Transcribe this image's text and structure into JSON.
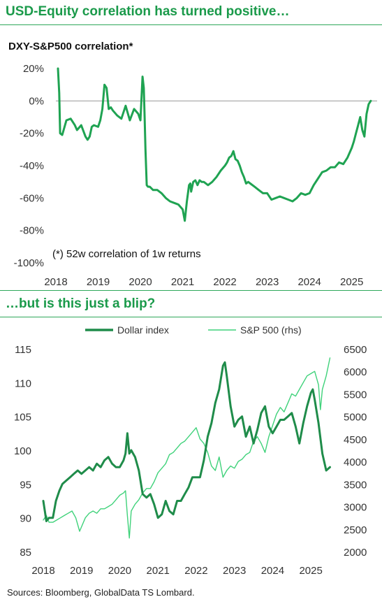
{
  "chart_data": [
    {
      "type": "line",
      "title": "USD-Equity correlation has turned positive…",
      "subtitle": "DXY-S&P500 correlation*",
      "annotation": "(*) 52w correlation of 1w returns",
      "x_tick_labels": [
        "2018",
        "2019",
        "2020",
        "2021",
        "2022",
        "2023",
        "2024",
        "2025"
      ],
      "y_tick_labels": [
        "20%",
        "0%",
        "-20%",
        "-40%",
        "-60%",
        "-80%",
        "-100%"
      ],
      "xlim": [
        2018.0,
        2025.6
      ],
      "ylim": [
        -100,
        20
      ],
      "reference_line": 0,
      "series": [
        {
          "color": "#1fa352",
          "x": [
            2018.05,
            2018.08,
            2018.1,
            2018.15,
            2018.25,
            2018.35,
            2018.45,
            2018.5,
            2018.6,
            2018.7,
            2018.75,
            2018.8,
            2018.85,
            2018.9,
            2019.0,
            2019.05,
            2019.1,
            2019.15,
            2019.2,
            2019.25,
            2019.3,
            2019.35,
            2019.45,
            2019.55,
            2019.65,
            2019.75,
            2019.85,
            2019.95,
            2020.0,
            2020.05,
            2020.08,
            2020.1,
            2020.12,
            2020.15,
            2020.18,
            2020.22,
            2020.3,
            2020.4,
            2020.5,
            2020.6,
            2020.7,
            2020.8,
            2020.9,
            2021.0,
            2021.05,
            2021.1,
            2021.15,
            2021.18,
            2021.2,
            2021.25,
            2021.3,
            2021.35,
            2021.4,
            2021.45,
            2021.5,
            2021.6,
            2021.7,
            2021.8,
            2021.9,
            2022.0,
            2022.05,
            2022.1,
            2022.15,
            2022.2,
            2022.25,
            2022.3,
            2022.35,
            2022.4,
            2022.45,
            2022.5,
            2022.55,
            2022.6,
            2022.7,
            2022.8,
            2022.9,
            2023.0,
            2023.1,
            2023.2,
            2023.3,
            2023.4,
            2023.5,
            2023.6,
            2023.7,
            2023.8,
            2023.9,
            2024.0,
            2024.1,
            2024.2,
            2024.3,
            2024.4,
            2024.5,
            2024.6,
            2024.7,
            2024.8,
            2024.9,
            2025.0,
            2025.05,
            2025.1,
            2025.15,
            2025.2,
            2025.25,
            2025.3,
            2025.35,
            2025.4,
            2025.45
          ],
          "y": [
            20,
            5,
            -20,
            -21,
            -12,
            -11,
            -15,
            -18,
            -15,
            -22,
            -24,
            -22,
            -16,
            -15,
            -16,
            -12,
            -5,
            10,
            8,
            -5,
            -4,
            -6,
            -9,
            -11,
            -3,
            -12,
            -5,
            -8,
            -12,
            15,
            8,
            -10,
            -30,
            -52,
            -53,
            -53,
            -55,
            -55,
            -57,
            -60,
            -62,
            -63,
            -64,
            -67,
            -74,
            -62,
            -52,
            -51,
            -56,
            -50,
            -49,
            -52,
            -49,
            -50,
            -50,
            -52,
            -50,
            -47,
            -43,
            -40,
            -38,
            -35,
            -34,
            -31,
            -36,
            -37,
            -40,
            -44,
            -47,
            -51,
            -50,
            -51,
            -53,
            -55,
            -57,
            -57,
            -61,
            -60,
            -59,
            -60,
            -61,
            -62,
            -60,
            -57,
            -58,
            -57,
            -52,
            -48,
            -44,
            -43,
            -41,
            -41,
            -38,
            -39,
            -35,
            -29,
            -25,
            -20,
            -15,
            -10,
            -18,
            -22,
            -8,
            -2,
            0
          ]
        }
      ]
    },
    {
      "type": "line",
      "title": "…but is this just a blip?",
      "x_tick_labels": [
        "2018",
        "2019",
        "2020",
        "2021",
        "2022",
        "2023",
        "2024",
        "2025"
      ],
      "y_tick_labels": [
        "115",
        "110",
        "105",
        "100",
        "95",
        "90",
        "85"
      ],
      "y2_tick_labels": [
        "6500",
        "6000",
        "5500",
        "5000",
        "4500",
        "4000",
        "3500",
        "3000",
        "2500",
        "2000"
      ],
      "xlim": [
        2018.0,
        2025.6
      ],
      "ylim": [
        85,
        115
      ],
      "y2lim": [
        2000,
        6500
      ],
      "legend_position": "top",
      "series": [
        {
          "name": "Dollar index",
          "axis": "left",
          "color": "#1f8c4a",
          "x": [
            2018.0,
            2018.08,
            2018.15,
            2018.25,
            2018.33,
            2018.42,
            2018.5,
            2018.6,
            2018.7,
            2018.8,
            2018.9,
            2019.0,
            2019.1,
            2019.2,
            2019.3,
            2019.4,
            2019.5,
            2019.6,
            2019.7,
            2019.8,
            2019.9,
            2020.0,
            2020.1,
            2020.15,
            2020.2,
            2020.25,
            2020.3,
            2020.4,
            2020.5,
            2020.6,
            2020.7,
            2020.8,
            2020.9,
            2021.0,
            2021.1,
            2021.2,
            2021.3,
            2021.4,
            2021.5,
            2021.6,
            2021.7,
            2021.8,
            2021.9,
            2022.0,
            2022.1,
            2022.2,
            2022.3,
            2022.4,
            2022.5,
            2022.6,
            2022.7,
            2022.75,
            2022.8,
            2022.9,
            2023.0,
            2023.1,
            2023.2,
            2023.3,
            2023.4,
            2023.5,
            2023.6,
            2023.7,
            2023.8,
            2023.9,
            2024.0,
            2024.1,
            2024.2,
            2024.3,
            2024.4,
            2024.5,
            2024.6,
            2024.7,
            2024.8,
            2024.9,
            2025.0,
            2025.05,
            2025.1,
            2025.2,
            2025.3,
            2025.4,
            2025.5
          ],
          "y": [
            92.5,
            89.5,
            90.0,
            90.0,
            92.5,
            94.0,
            95.0,
            95.5,
            96.0,
            96.5,
            97.0,
            96.5,
            97.0,
            97.5,
            97.0,
            98.0,
            97.5,
            98.5,
            99.0,
            98.0,
            97.5,
            97.5,
            98.5,
            99.5,
            102.5,
            99.5,
            100.0,
            99.0,
            97.0,
            93.5,
            93.0,
            93.5,
            92.0,
            90.0,
            90.5,
            92.5,
            91.0,
            90.5,
            92.5,
            92.5,
            93.5,
            94.5,
            96.0,
            96.0,
            96.0,
            98.5,
            102.0,
            104.0,
            107.0,
            109.0,
            112.5,
            113.0,
            111.0,
            106.5,
            103.5,
            104.5,
            105.0,
            102.0,
            103.5,
            101.0,
            103.0,
            105.5,
            106.5,
            103.5,
            102.5,
            103.5,
            104.5,
            104.5,
            105.0,
            105.5,
            103.5,
            101.0,
            104.0,
            106.5,
            108.5,
            109.0,
            107.5,
            104.0,
            99.5,
            97.0,
            97.5
          ]
        },
        {
          "name": "S&P 500 (rhs)",
          "axis": "right",
          "color": "#3fd27a",
          "x": [
            2018.0,
            2018.08,
            2018.15,
            2018.25,
            2018.35,
            2018.45,
            2018.55,
            2018.65,
            2018.75,
            2018.85,
            2018.95,
            2019.0,
            2019.1,
            2019.2,
            2019.3,
            2019.4,
            2019.5,
            2019.6,
            2019.7,
            2019.8,
            2019.9,
            2020.0,
            2020.1,
            2020.15,
            2020.2,
            2020.25,
            2020.3,
            2020.4,
            2020.5,
            2020.6,
            2020.7,
            2020.8,
            2020.9,
            2021.0,
            2021.1,
            2021.2,
            2021.3,
            2021.4,
            2021.5,
            2021.6,
            2021.7,
            2021.8,
            2021.9,
            2022.0,
            2022.1,
            2022.2,
            2022.3,
            2022.4,
            2022.5,
            2022.6,
            2022.7,
            2022.8,
            2022.9,
            2023.0,
            2023.1,
            2023.2,
            2023.3,
            2023.4,
            2023.5,
            2023.6,
            2023.7,
            2023.8,
            2023.9,
            2024.0,
            2024.1,
            2024.2,
            2024.3,
            2024.4,
            2024.5,
            2024.6,
            2024.7,
            2024.8,
            2024.9,
            2025.0,
            2025.1,
            2025.2,
            2025.25,
            2025.3,
            2025.4,
            2025.5
          ],
          "y": [
            2700,
            2800,
            2650,
            2650,
            2700,
            2750,
            2800,
            2850,
            2900,
            2750,
            2450,
            2550,
            2750,
            2850,
            2900,
            2850,
            2950,
            2950,
            3000,
            3050,
            3150,
            3250,
            3300,
            3350,
            2800,
            2300,
            2900,
            3050,
            3150,
            3300,
            3400,
            3400,
            3550,
            3750,
            3850,
            3950,
            4150,
            4200,
            4300,
            4400,
            4450,
            4550,
            4650,
            4750,
            4500,
            4400,
            4200,
            3900,
            3800,
            4100,
            3650,
            3800,
            3900,
            3850,
            4000,
            4050,
            4150,
            4200,
            4450,
            4550,
            4400,
            4200,
            4550,
            4800,
            5050,
            5200,
            5100,
            5300,
            5500,
            5450,
            5600,
            5750,
            5900,
            5950,
            6000,
            5700,
            5150,
            5600,
            5900,
            6300
          ]
        }
      ]
    }
  ],
  "footer": {
    "source": "Sources: Bloomberg, GlobalData TS Lombard."
  }
}
